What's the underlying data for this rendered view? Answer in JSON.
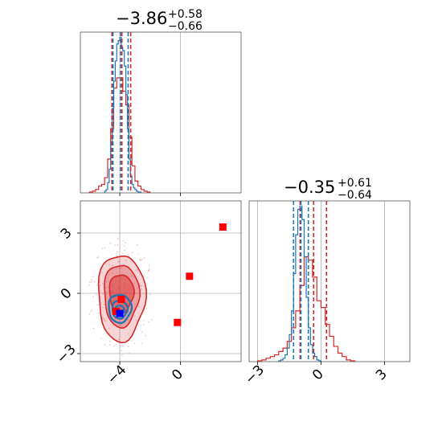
{
  "chart_data": [
    {
      "type": "histogram",
      "panel": "marginal-x",
      "title": {
        "value": "−3.86",
        "plus": "+0.58",
        "minus": "−0.66"
      },
      "xlim": [
        -6.6,
        4.0
      ],
      "colors": {
        "red": "#d62728",
        "blue": "#1f77b4"
      },
      "series": [
        {
          "color": "red",
          "quantiles": [
            -4.52,
            -3.86,
            -3.28
          ],
          "bins": [
            -6.0,
            -5.8,
            -5.6,
            -5.4,
            -5.2,
            -5.0,
            -4.8,
            -4.6,
            -4.4,
            -4.2,
            -4.0,
            -3.8,
            -3.6,
            -3.4,
            -3.2,
            -3.0,
            -2.8,
            -2.6,
            -2.4,
            -2.2,
            -2.0
          ],
          "counts": [
            0.5,
            1,
            2,
            4,
            5,
            9,
            20,
            38,
            62,
            68,
            68,
            60,
            52,
            33,
            16,
            7,
            4,
            2,
            1,
            0.5
          ]
        },
        {
          "color": "blue",
          "quantiles": [
            -4.45,
            -3.95,
            -3.45
          ],
          "bins": [
            -5.0,
            -4.9,
            -4.8,
            -4.7,
            -4.6,
            -4.5,
            -4.4,
            -4.3,
            -4.2,
            -4.1,
            -4.0,
            -3.9,
            -3.8,
            -3.7,
            -3.6,
            -3.5,
            -3.4,
            -3.3,
            -3.2,
            -3.1,
            -3.0,
            -2.9,
            -2.8,
            -2.7,
            -2.6
          ],
          "counts": [
            1,
            2,
            6,
            14,
            30,
            50,
            66,
            78,
            88,
            90,
            92,
            86,
            84,
            75,
            58,
            38,
            20,
            10,
            5,
            3,
            2,
            1,
            0.5,
            0.5
          ]
        }
      ],
      "max_count": 95
    },
    {
      "type": "contour",
      "panel": "joint",
      "xlim": [
        -6.6,
        4.0
      ],
      "ylim": [
        -3.4,
        4.6
      ],
      "xticks": [
        -4,
        0
      ],
      "yticks": [
        -3,
        0,
        3
      ],
      "tick_labels_x": [
        "−4",
        "0"
      ],
      "tick_labels_y": [
        "−3",
        "0",
        "3"
      ],
      "red_contours": [
        {
          "cx": -3.9,
          "cy": -0.2,
          "rx": 1.55,
          "ry": 2.15,
          "alpha": 0.35
        },
        {
          "cx": -3.9,
          "cy": -0.1,
          "rx": 1.15,
          "ry": 1.55,
          "alpha": 0.55
        },
        {
          "cx": -3.9,
          "cy": 0.0,
          "rx": 0.8,
          "ry": 0.95,
          "alpha": 0.85
        }
      ],
      "blue_contours": [
        {
          "cx": -4.0,
          "cy": -0.75,
          "rx": 0.75,
          "ry": 0.7
        },
        {
          "cx": -4.0,
          "cy": -0.8,
          "rx": 0.5,
          "ry": 0.45
        },
        {
          "cx": -4.0,
          "cy": -0.85,
          "rx": 0.28,
          "ry": 0.25
        }
      ],
      "red_squares": [
        [
          2.8,
          3.3
        ],
        [
          0.6,
          0.85
        ],
        [
          -0.2,
          -1.45
        ],
        [
          -3.9,
          -0.3
        ],
        [
          -4.25,
          -0.9
        ]
      ],
      "blue_squares": [
        [
          -4.0,
          -1.0
        ]
      ]
    },
    {
      "type": "histogram",
      "panel": "marginal-y",
      "title": {
        "value": "−0.35",
        "plus": "+0.61",
        "minus": "−0.64"
      },
      "xlim": [
        -3.4,
        4.2
      ],
      "xticks": [
        -3,
        0,
        3
      ],
      "tick_labels": [
        "−3",
        "0",
        "3"
      ],
      "series": [
        {
          "color": "red",
          "quantiles": [
            -0.99,
            -0.35,
            0.26
          ],
          "bins": [
            -3.0,
            -2.8,
            -2.6,
            -2.4,
            -2.2,
            -2.0,
            -1.8,
            -1.6,
            -1.4,
            -1.2,
            -1.0,
            -0.8,
            -0.6,
            -0.4,
            -0.2,
            0.0,
            0.2,
            0.4,
            0.6,
            0.8,
            1.0,
            1.2,
            1.4,
            1.6
          ],
          "counts": [
            0.5,
            1,
            2,
            3,
            4,
            6,
            8,
            12,
            20,
            30,
            45,
            62,
            60,
            50,
            36,
            32,
            22,
            15,
            9,
            5,
            3,
            1,
            0.5
          ]
        },
        {
          "color": "blue",
          "quantiles": [
            -1.3,
            -0.95,
            -0.6
          ],
          "bins": [
            -2.0,
            -1.9,
            -1.8,
            -1.7,
            -1.6,
            -1.5,
            -1.4,
            -1.3,
            -1.2,
            -1.1,
            -1.0,
            -0.9,
            -0.8,
            -0.7,
            -0.6,
            -0.5,
            -0.4,
            -0.3,
            -0.2,
            -0.1,
            0.0
          ],
          "counts": [
            0.5,
            1,
            2,
            4,
            8,
            16,
            30,
            52,
            75,
            90,
            92,
            84,
            62,
            38,
            20,
            10,
            5,
            3,
            1,
            0.5
          ]
        }
      ],
      "max_count": 95
    }
  ]
}
